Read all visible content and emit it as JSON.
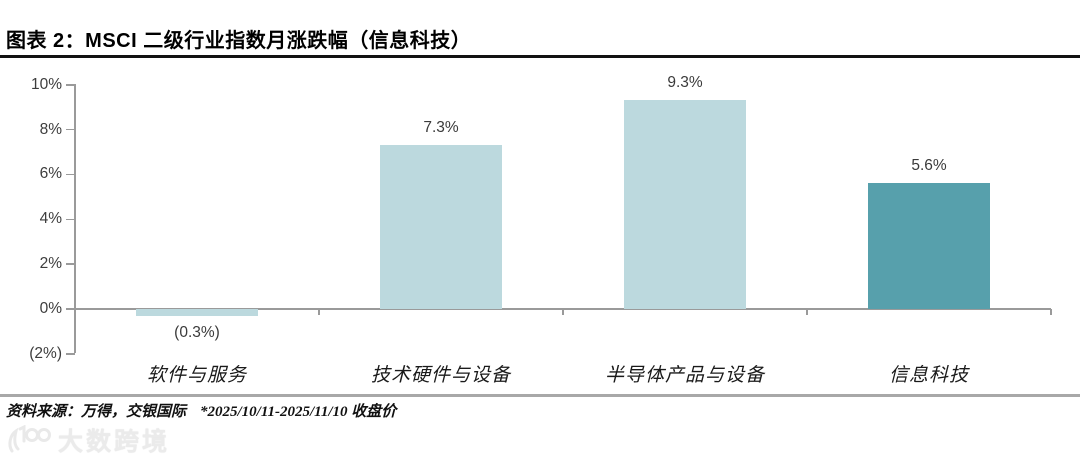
{
  "title": "图表 2：MSCI 二级行业指数月涨跌幅（信息科技）",
  "source_note": {
    "source": "资料来源：万得，交银国际",
    "detail": "*2025/10/11-2025/11/10 收盘价"
  },
  "watermark": {
    "text": "大数跨境",
    "logo": "100"
  },
  "colors": {
    "bar_light": "#bcd9de",
    "bar_dark": "#57a0ac",
    "axis": "#9a9a9a",
    "label_text": "#3a3a3a"
  },
  "chart_data": {
    "type": "bar",
    "title": "MSCI 二级行业指数月涨跌幅（信息科技）",
    "categories": [
      "软件与服务",
      "技术硬件与设备",
      "半导体产品与设备",
      "信息科技"
    ],
    "values": [
      -0.3,
      7.3,
      9.3,
      5.6
    ],
    "data_labels": [
      "(0.3%)",
      "7.3%",
      "9.3%",
      "5.6%"
    ],
    "bar_colors": [
      "#bcd9de",
      "#bcd9de",
      "#bcd9de",
      "#57a0ac"
    ],
    "xlabel": "",
    "ylabel": "",
    "ylim": [
      -2,
      10
    ],
    "ytick_step": 2,
    "ytick_labels": [
      "(2%)",
      "0%",
      "2%",
      "4%",
      "6%",
      "8%",
      "10%"
    ],
    "grid": false,
    "legend": null
  }
}
